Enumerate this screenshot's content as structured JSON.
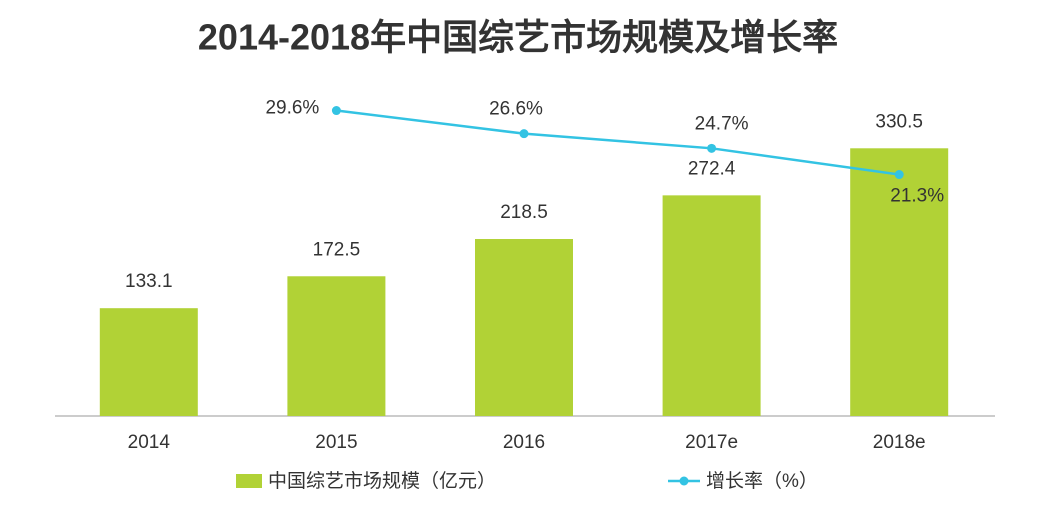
{
  "chart_data": {
    "type": "bar",
    "title": "2014-2018年中国综艺市场规模及增长率",
    "categories": [
      "2014",
      "2015",
      "2016",
      "2017e",
      "2018e"
    ],
    "series": [
      {
        "name": "中国综艺市场规模（亿元）",
        "type": "bar",
        "color": "#b1d236",
        "values": [
          133.1,
          172.5,
          218.5,
          272.4,
          330.5
        ]
      },
      {
        "name": "增长率（%）",
        "type": "line",
        "axis": "y2",
        "color": "#33c3e3",
        "values": [
          null,
          29.6,
          26.6,
          24.7,
          21.3
        ],
        "value_labels": [
          null,
          "29.6%",
          "26.6%",
          "24.7%",
          "21.3%"
        ]
      }
    ],
    "ylim": [
      0,
      400
    ],
    "y2lim": [
      -10,
      32
    ],
    "legend": "bottom"
  }
}
